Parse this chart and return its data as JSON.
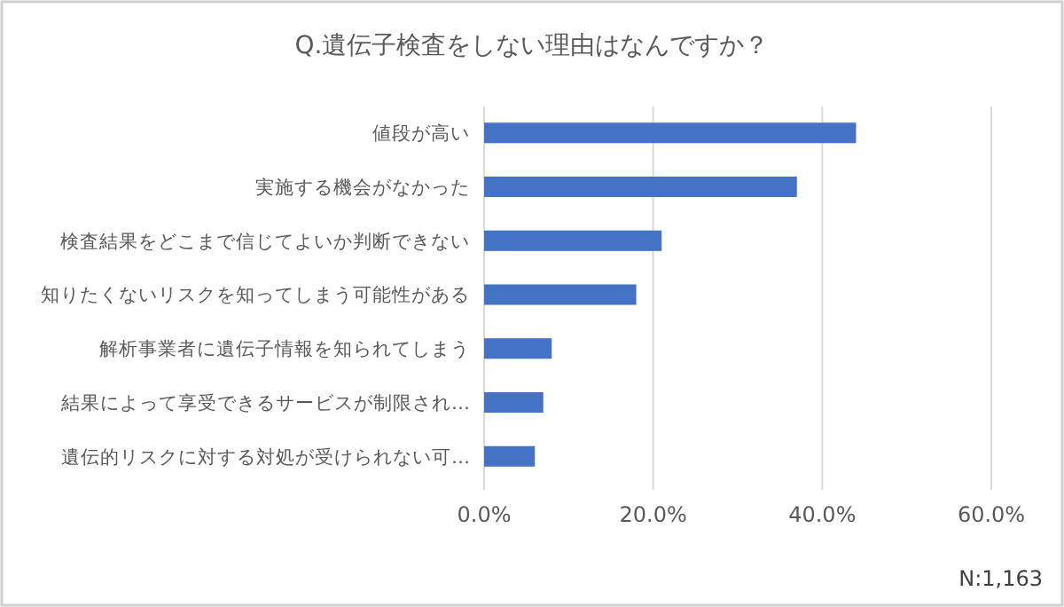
{
  "chart_data": {
    "type": "bar",
    "orientation": "horizontal",
    "title": "Q.遺伝子検査をしない理由はなんですか？",
    "categories": [
      "値段が高い",
      "実施する機会がなかった",
      "検査結果をどこまで信じてよいか判断できない",
      "知りたくないリスクを知ってしまう可能性がある",
      "解析事業者に遺伝子情報を知られてしまう",
      "結果によって享受できるサービスが制限され…",
      "遺伝的リスクに対する対処が受けられない可…"
    ],
    "values": [
      44,
      37,
      21,
      18,
      8,
      7,
      6
    ],
    "color": "#4472c4",
    "xlim": [
      0,
      60
    ],
    "xticks": [
      {
        "value": 0,
        "label": "0.0%"
      },
      {
        "value": 20,
        "label": "20.0%"
      },
      {
        "value": 40,
        "label": "40.0%"
      },
      {
        "value": 60,
        "label": "60.0%"
      }
    ],
    "grid": "x",
    "annotations": [
      "N:1,163"
    ]
  }
}
